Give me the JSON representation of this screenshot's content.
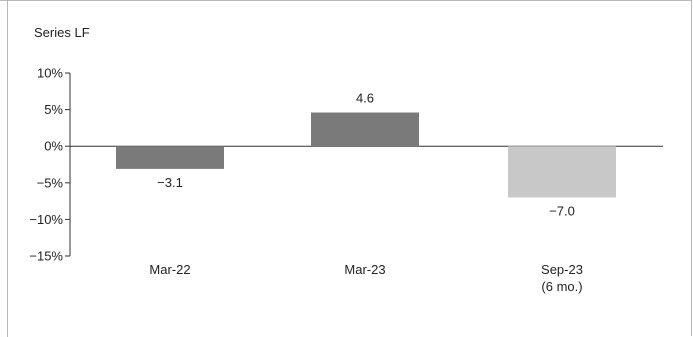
{
  "chart_data": {
    "type": "bar",
    "ylabel": "Series LF",
    "categories": [
      [
        "Mar-22"
      ],
      [
        "Mar-23"
      ],
      [
        "Sep-23",
        "(6 mo.)"
      ]
    ],
    "values": [
      -3.1,
      4.6,
      -7.0
    ],
    "value_labels": [
      "−3.1",
      "4.6",
      "−7.0"
    ],
    "bar_colors": [
      "#7a7a7a",
      "#7a7a7a",
      "#c8c8c8"
    ],
    "ylim": [
      -15,
      10
    ],
    "yticks": [
      10,
      5,
      0,
      -5,
      -10,
      -15
    ],
    "ytick_labels": [
      "10%",
      "5%",
      "0%",
      "−5%",
      "−10%",
      "−15%"
    ],
    "grid": false
  }
}
